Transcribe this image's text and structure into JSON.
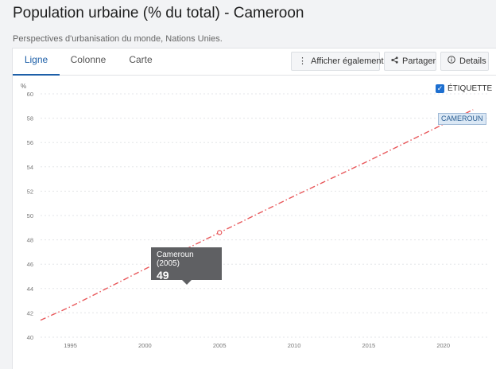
{
  "header": {
    "title": "Population urbaine (% du total) - Cameroon",
    "subtitle": "Perspectives d'urbanisation du monde, Nations Unies."
  },
  "tabs": [
    {
      "label": "Ligne",
      "active": true
    },
    {
      "label": "Colonne",
      "active": false
    },
    {
      "label": "Carte",
      "active": false
    }
  ],
  "toolbar": {
    "show_also_label": "Afficher également",
    "share_label": "Partager",
    "details_label": "Details",
    "show_also_icon": "vertical-dots-icon",
    "share_icon": "share-icon",
    "details_icon": "info-icon"
  },
  "label_toggle": {
    "label": "ÉTIQUETTE",
    "checked": true
  },
  "tooltip": {
    "label": "Cameroun (2005)",
    "value": "49"
  },
  "series_tag": "CAMEROUN",
  "colors": {
    "accent": "#1d5fa8",
    "series": "#e8575a",
    "tooltip_bg": "#5f6063"
  },
  "chart_data": {
    "type": "line",
    "ylabel": "%",
    "ylim": [
      40,
      60
    ],
    "xlim": [
      1993,
      2023
    ],
    "yticks": [
      40,
      42,
      44,
      46,
      48,
      50,
      52,
      54,
      56,
      58,
      60
    ],
    "xticks": [
      1995,
      2000,
      2005,
      2010,
      2015,
      2020
    ],
    "grid": true,
    "series": [
      {
        "name": "Cameroun",
        "style": "dash-dot",
        "x": [
          1993,
          1995,
          2000,
          2005,
          2010,
          2015,
          2020,
          2022
        ],
        "y": [
          41.4,
          42.5,
          45.6,
          48.6,
          51.6,
          54.5,
          57.5,
          58.7
        ]
      }
    ],
    "highlight": {
      "x": 2005,
      "y": 48.6
    }
  }
}
